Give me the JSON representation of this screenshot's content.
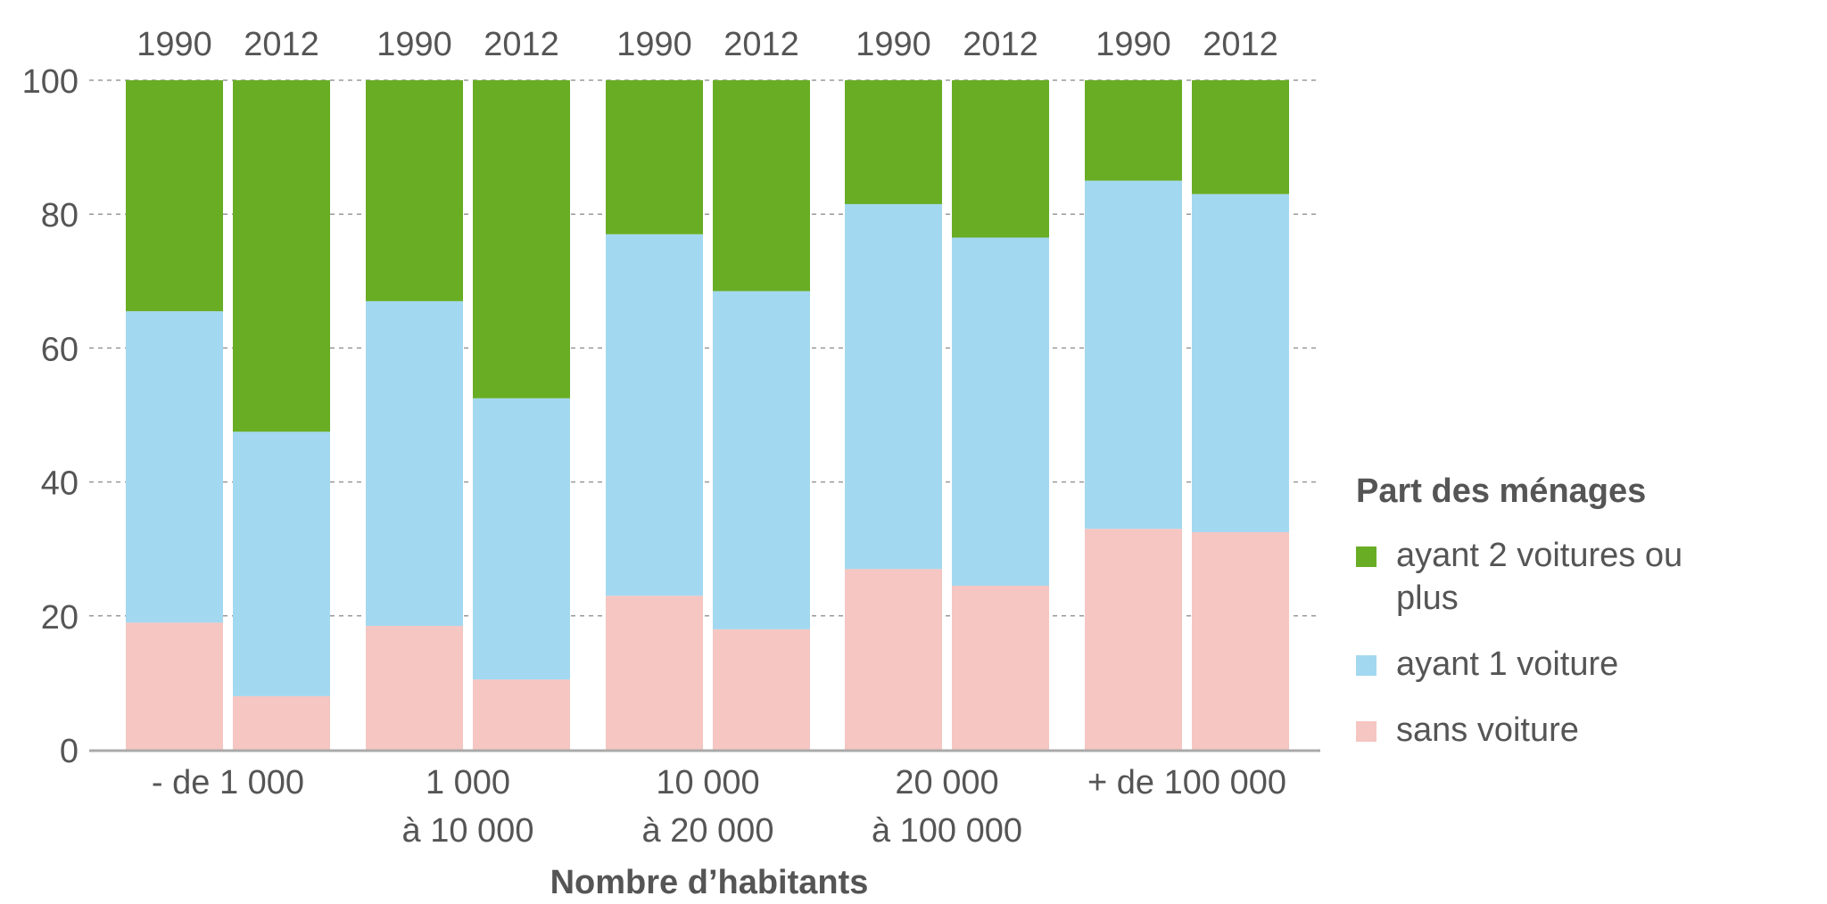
{
  "chart_data": {
    "type": "bar",
    "stacked": true,
    "title": "",
    "xlabel": "Nombre d’habitants",
    "ylabel": "",
    "ylim": [
      0,
      100
    ],
    "yticks": [
      0,
      20,
      40,
      60,
      80,
      100
    ],
    "grid": true,
    "groups": [
      {
        "label": [
          "- de 1 000"
        ],
        "bars": [
          "1990",
          "2012"
        ]
      },
      {
        "label": [
          "1 000",
          "à 10 000"
        ],
        "bars": [
          "1990",
          "2012"
        ]
      },
      {
        "label": [
          "10 000",
          "à 20 000"
        ],
        "bars": [
          "1990",
          "2012"
        ]
      },
      {
        "label": [
          "20 000",
          "à 100 000"
        ],
        "bars": [
          "1990",
          "2012"
        ]
      },
      {
        "label": [
          "+ de 100 000"
        ],
        "bars": [
          "1990",
          "2012"
        ]
      }
    ],
    "categories": [
      "- de 1 000 / 1990",
      "- de 1 000 / 2012",
      "1 000 à 10 000 / 1990",
      "1 000 à 10 000 / 2012",
      "10 000 à 20 000 / 1990",
      "10 000 à 20 000 / 2012",
      "20 000 à 100 000 / 1990",
      "20 000 à 100 000 / 2012",
      "+ de 100 000 / 1990",
      "+ de 100 000 / 2012"
    ],
    "series": [
      {
        "name": "sans voiture",
        "color": "#f5c6c2",
        "values": [
          19,
          8,
          18.5,
          10.5,
          23,
          18,
          27,
          24.5,
          33,
          32.5
        ]
      },
      {
        "name": "ayant 1 voiture",
        "color": "#a3d8f1",
        "values": [
          46.5,
          39.5,
          48.5,
          42,
          54,
          50.5,
          54.5,
          52,
          52,
          50.5
        ]
      },
      {
        "name": "ayant 2 voitures ou plus",
        "color": "#68ad24",
        "values": [
          34.5,
          52.5,
          33,
          47.5,
          23,
          31.5,
          18.5,
          23.5,
          15,
          17
        ]
      }
    ],
    "legend": {
      "title": "Part des ménages",
      "position": "right",
      "items": [
        {
          "label": "ayant 2 voitures ou plus",
          "color": "#68ad24"
        },
        {
          "label": "ayant 1 voiture",
          "color": "#a3d8f1"
        },
        {
          "label": "sans voiture",
          "color": "#f5c6c2"
        }
      ]
    }
  }
}
